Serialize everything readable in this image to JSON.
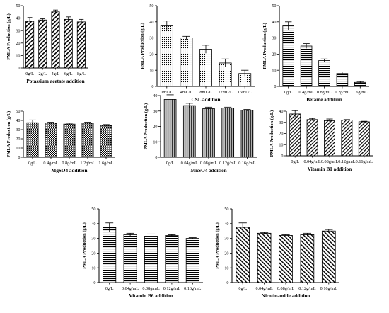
{
  "chart_data": [
    {
      "type": "bar",
      "xlabel": "Potassium acetate addition",
      "ylabel": "PMLA Production (g/L)",
      "categories": [
        "0g/L",
        "2g/L",
        "4g/L",
        "6g/L",
        "8g/L"
      ],
      "values": [
        37.5,
        38.5,
        45,
        39,
        37
      ],
      "errors": [
        3,
        1,
        1.5,
        2,
        2
      ],
      "ylim": [
        0,
        50
      ],
      "yticks": [
        0,
        10,
        20,
        30,
        40,
        50
      ],
      "pattern": "diag"
    },
    {
      "type": "bar",
      "xlabel": "CSL addition",
      "ylabel": "PMLA Production (g/L)",
      "categories": [
        "0mL/L",
        "4mL/L",
        "8mL/L",
        "12mL/L",
        "16mL/L"
      ],
      "values": [
        37.5,
        30,
        23,
        14.5,
        8
      ],
      "errors": [
        3,
        1,
        2.5,
        2.5,
        2
      ],
      "ylim": [
        0,
        50
      ],
      "yticks": [
        0,
        10,
        20,
        30,
        40,
        50
      ],
      "pattern": "dots"
    },
    {
      "type": "bar",
      "xlabel": "Betaine addition",
      "ylabel": "PMLA Production (g/L)",
      "categories": [
        "0g/L",
        "0.4g/mL",
        "0.8g/mL",
        "1.2g/mL",
        "1.6g/mL"
      ],
      "values": [
        37.5,
        25,
        16,
        8,
        2.5
      ],
      "errors": [
        2.5,
        1.5,
        1,
        1,
        0.5
      ],
      "ylim": [
        0,
        50
      ],
      "yticks": [
        0,
        10,
        20,
        30,
        40,
        50
      ],
      "pattern": "hlines"
    },
    {
      "type": "bar",
      "xlabel": "MgSO4 addition",
      "ylabel": "PMLA Production (g/L)",
      "categories": [
        "0g/L",
        "0.4g/mL",
        "0.8g/mL",
        "1.2g/mL",
        "1.6g/mL"
      ],
      "values": [
        37.5,
        37,
        36,
        37,
        34.5
      ],
      "errors": [
        3,
        1,
        1,
        1,
        1
      ],
      "ylim": [
        0,
        50
      ],
      "yticks": [
        0,
        10,
        20,
        30,
        40,
        50
      ],
      "pattern": "checker"
    },
    {
      "type": "bar",
      "xlabel": "MnSO4 addition",
      "ylabel": "PMLA Production (g/L)",
      "categories": [
        "0g/L",
        "0.04g/mL",
        "0.08g/mL",
        "0.12g/mL",
        "0.16g/mL"
      ],
      "values": [
        37.5,
        33.5,
        31.5,
        32,
        30.5
      ],
      "errors": [
        3,
        1.5,
        1,
        0.5,
        0.5
      ],
      "ylim": [
        0,
        40
      ],
      "yticks": [
        0,
        10,
        20,
        30,
        40
      ],
      "pattern": "vlines"
    },
    {
      "type": "bar",
      "xlabel": "Vitamin B1 addition",
      "ylabel": "PMLA Production (g/L)",
      "categories": [
        "0g/L",
        "0.04g/mL",
        "0.08g/mL",
        "0.12g/mL",
        "0.16g/mL"
      ],
      "values": [
        37.5,
        32.5,
        31.5,
        32,
        30.5
      ],
      "errors": [
        3,
        1,
        1.5,
        0.5,
        0.5
      ],
      "ylim": [
        0,
        40
      ],
      "yticks": [
        0,
        10,
        20,
        30,
        40
      ],
      "pattern": "diag2"
    },
    {
      "type": "bar",
      "xlabel": "Vitamin B6 addition",
      "ylabel": "PMLA Production (g/L)",
      "categories": [
        "0g/L",
        "0.04g/mL",
        "0.08g/mL",
        "0.12g/mL",
        "0.16g/mL"
      ],
      "values": [
        37.5,
        32.5,
        31.5,
        32,
        30
      ],
      "errors": [
        3,
        1,
        1.5,
        0.5,
        0.5
      ],
      "ylim": [
        0,
        50
      ],
      "yticks": [
        0,
        10,
        20,
        30,
        40,
        50
      ],
      "pattern": "hlines"
    },
    {
      "type": "bar",
      "xlabel": "Nicotinamide addition",
      "ylabel": "PMLA Production (g/L)",
      "categories": [
        "0g/L",
        "0.04g/mL",
        "0.08g/mL",
        "0.12g/mL",
        "0.16g/mL"
      ],
      "values": [
        37.5,
        33.5,
        32,
        32.5,
        35
      ],
      "errors": [
        3,
        0.5,
        0.5,
        1,
        1
      ],
      "ylim": [
        0,
        50
      ],
      "yticks": [
        0,
        10,
        20,
        30,
        40,
        50
      ],
      "pattern": "backdiag"
    }
  ]
}
